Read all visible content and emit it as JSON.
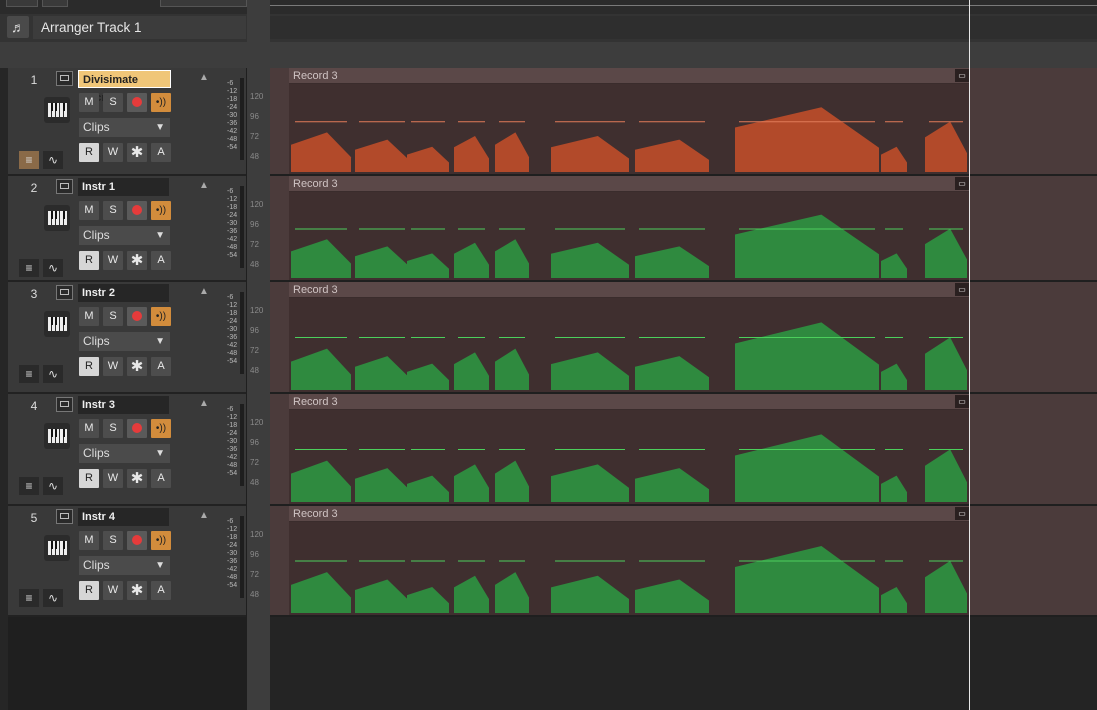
{
  "arranger": {
    "label": "Arranger Track 1",
    "icon": "music-note-icon"
  },
  "tracks": [
    {
      "num": "1",
      "name": "Divisimate Micro",
      "selected": true,
      "color": "#b24a2a",
      "input": "Clips",
      "clip": "Record 3"
    },
    {
      "num": "2",
      "name": "Instr 1",
      "selected": false,
      "color": "#2f8a3f",
      "input": "Clips",
      "clip": "Record 3"
    },
    {
      "num": "3",
      "name": "Instr 2",
      "selected": false,
      "color": "#2f8a3f",
      "input": "Clips",
      "clip": "Record 3"
    },
    {
      "num": "4",
      "name": "Instr 3",
      "selected": false,
      "color": "#2f8a3f",
      "input": "Clips",
      "clip": "Record 3"
    },
    {
      "num": "5",
      "name": "Instr 4",
      "selected": false,
      "color": "#2f8a3f",
      "input": "Clips",
      "clip": "Record 3"
    }
  ],
  "buttons": {
    "mute": "M",
    "solo": "S",
    "read": "R",
    "write": "W",
    "archive": "✱",
    "automation": "A"
  },
  "meter_scale": [
    "-6",
    "-12",
    "-18",
    "-24",
    "-30",
    "-36",
    "-42",
    "-48",
    "-54"
  ],
  "velocity_scale": [
    "120",
    "96",
    "72",
    "48"
  ]
}
